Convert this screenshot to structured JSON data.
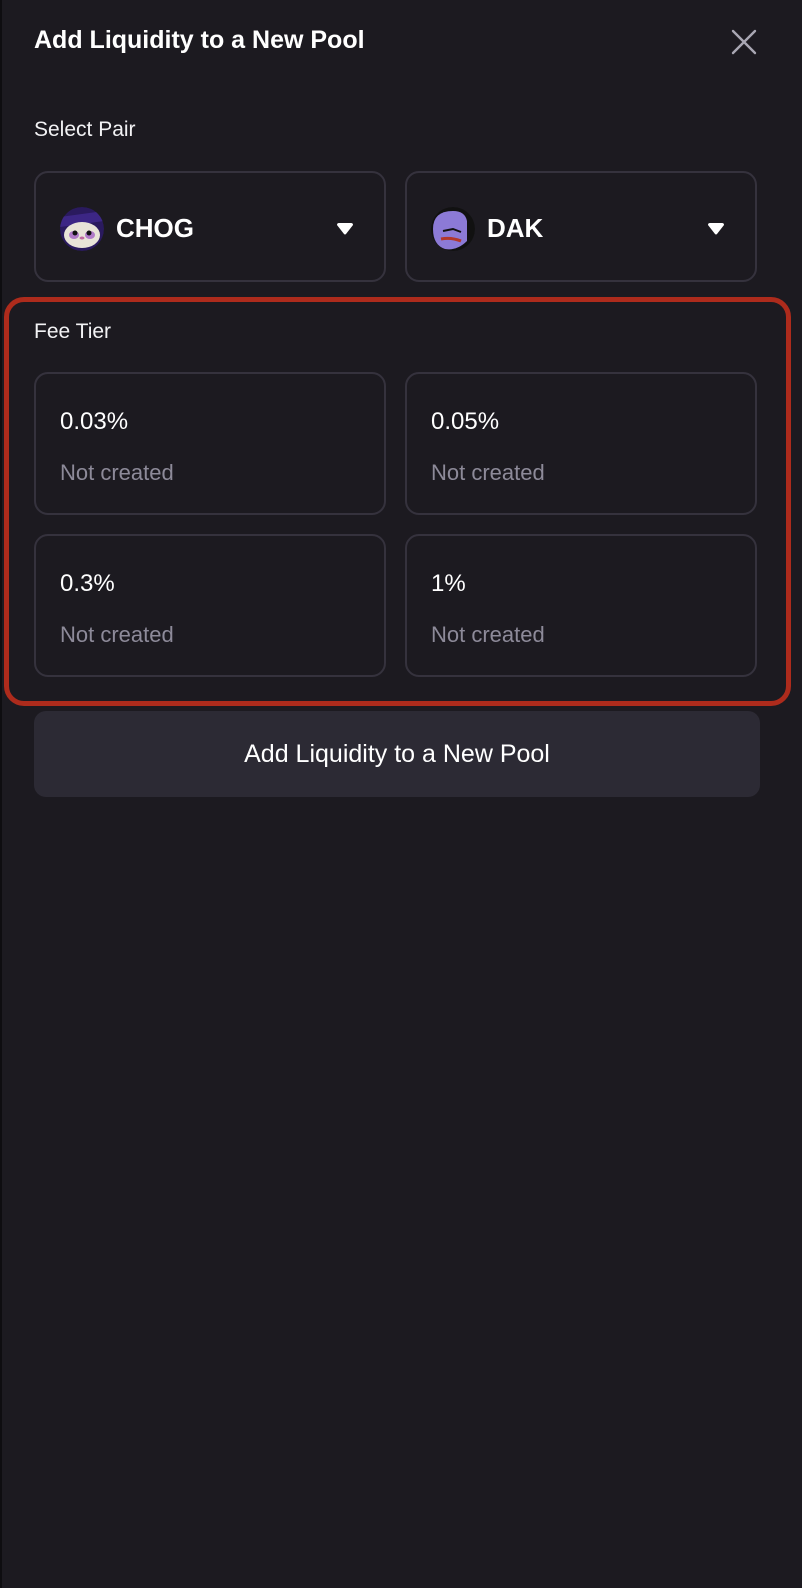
{
  "header": {
    "title": "Add Liquidity to a New Pool",
    "close_icon": "close-icon"
  },
  "pair": {
    "label": "Select Pair",
    "tokens": [
      {
        "symbol": "CHOG",
        "icon": "chog-token-icon"
      },
      {
        "symbol": "DAK",
        "icon": "dak-token-icon"
      }
    ]
  },
  "fee_tier": {
    "label": "Fee Tier",
    "tiers": [
      {
        "fee": "0.03%",
        "status": "Not created"
      },
      {
        "fee": "0.05%",
        "status": "Not created"
      },
      {
        "fee": "0.3%",
        "status": "Not created"
      },
      {
        "fee": "1%",
        "status": "Not created"
      }
    ],
    "highlight_color": "#ad2b1c"
  },
  "submit": {
    "label": "Add Liquidity to a New Pool"
  }
}
